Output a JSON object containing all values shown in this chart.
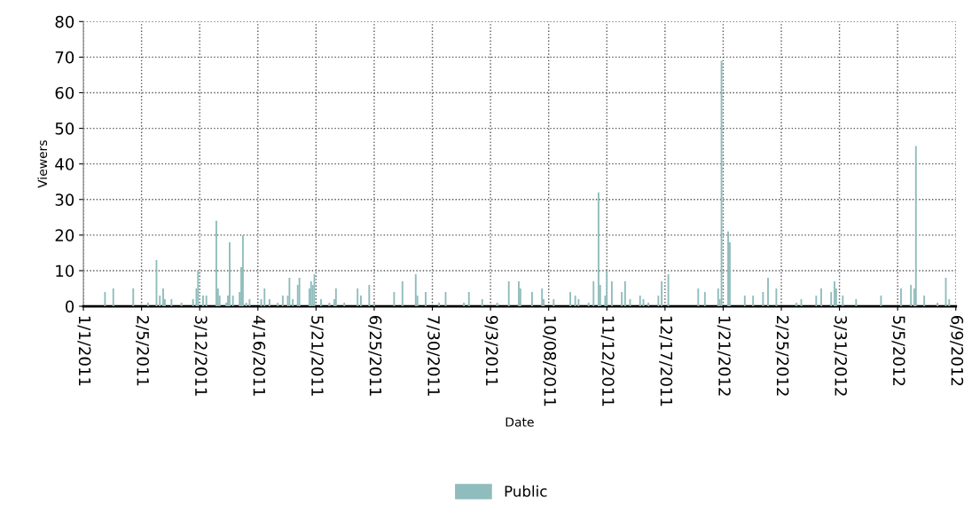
{
  "chart_data": {
    "type": "bar",
    "xlabel": "Date",
    "ylabel": "Viewers",
    "legend": "bottom",
    "grid": true,
    "line_style": "dotted",
    "xlim": [
      "2011-01-01",
      "2012-06-09"
    ],
    "xticks": [
      {
        "value": "2011-01-01",
        "label": "1/1/2011"
      },
      {
        "value": "2011-02-05",
        "label": "2/5/2011"
      },
      {
        "value": "2011-03-12",
        "label": "3/12/2011"
      },
      {
        "value": "2011-04-16",
        "label": "4/16/2011"
      },
      {
        "value": "2011-05-21",
        "label": "5/21/2011"
      },
      {
        "value": "2011-06-25",
        "label": "6/25/2011"
      },
      {
        "value": "2011-07-30",
        "label": "7/30/2011"
      },
      {
        "value": "2011-09-03",
        "label": "9/3/2011"
      },
      {
        "value": "2011-10-08",
        "label": "10/08/2011"
      },
      {
        "value": "2011-11-12",
        "label": "11/12/2011"
      },
      {
        "value": "2011-12-17",
        "label": "12/17/2011"
      },
      {
        "value": "2012-01-21",
        "label": "1/21/2012"
      },
      {
        "value": "2012-02-25",
        "label": "2/25/2012"
      },
      {
        "value": "2012-03-31",
        "label": "3/31/2012"
      },
      {
        "value": "2012-05-05",
        "label": "5/5/2012"
      },
      {
        "value": "2012-06-09",
        "label": "6/9/2012"
      }
    ],
    "ylim": [
      0,
      80
    ],
    "yticks": [
      0,
      10,
      20,
      30,
      40,
      50,
      60,
      70,
      80
    ],
    "x": [
      "2011-01-14",
      "2011-01-19",
      "2011-01-31",
      "2011-02-09",
      "2011-02-14",
      "2011-02-16",
      "2011-02-18",
      "2011-02-19",
      "2011-02-23",
      "2011-03-01",
      "2011-03-08",
      "2011-03-10",
      "2011-03-11",
      "2011-03-14",
      "2011-03-16",
      "2011-03-22",
      "2011-03-23",
      "2011-03-24",
      "2011-03-28",
      "2011-03-29",
      "2011-03-30",
      "2011-04-01",
      "2011-04-05",
      "2011-04-06",
      "2011-04-07",
      "2011-04-09",
      "2011-04-11",
      "2011-04-18",
      "2011-04-20",
      "2011-04-23",
      "2011-04-28",
      "2011-05-01",
      "2011-05-04",
      "2011-05-05",
      "2011-05-07",
      "2011-05-10",
      "2011-05-11",
      "2011-05-17",
      "2011-05-18",
      "2011-05-19",
      "2011-05-20",
      "2011-05-24",
      "2011-05-29",
      "2011-06-01",
      "2011-06-02",
      "2011-06-07",
      "2011-06-15",
      "2011-06-17",
      "2011-06-22",
      "2011-06-25",
      "2011-07-07",
      "2011-07-12",
      "2011-07-20",
      "2011-07-21",
      "2011-07-26",
      "2011-08-03",
      "2011-08-07",
      "2011-08-18",
      "2011-08-21",
      "2011-08-29",
      "2011-09-07",
      "2011-09-14",
      "2011-09-20",
      "2011-09-21",
      "2011-09-28",
      "2011-10-04",
      "2011-10-05",
      "2011-10-11",
      "2011-10-21",
      "2011-10-24",
      "2011-10-26",
      "2011-11-01",
      "2011-11-04",
      "2011-11-07",
      "2011-11-08",
      "2011-11-11",
      "2011-11-12",
      "2011-11-15",
      "2011-11-21",
      "2011-11-23",
      "2011-11-26",
      "2011-12-02",
      "2011-12-04",
      "2011-12-07",
      "2011-12-13",
      "2011-12-15",
      "2011-12-19",
      "2012-01-06",
      "2012-01-10",
      "2012-01-18",
      "2012-01-19",
      "2012-01-20",
      "2012-01-24",
      "2012-01-25",
      "2012-02-03",
      "2012-02-08",
      "2012-02-14",
      "2012-02-17",
      "2012-02-22",
      "2012-03-05",
      "2012-03-08",
      "2012-03-17",
      "2012-03-20",
      "2012-03-26",
      "2012-03-28",
      "2012-03-29",
      "2012-04-02",
      "2012-04-10",
      "2012-04-25",
      "2012-05-07",
      "2012-05-13",
      "2012-05-15",
      "2012-05-16",
      "2012-05-21",
      "2012-05-29",
      "2012-06-03",
      "2012-06-05"
    ],
    "series": [
      {
        "name": "Public",
        "color": "#8fbcbc",
        "values": [
          4,
          5,
          5,
          1,
          13,
          3,
          5,
          2,
          2,
          1,
          2,
          5,
          10,
          3,
          3,
          24,
          5,
          3,
          1,
          3,
          18,
          3,
          4,
          11,
          20,
          1,
          2,
          2,
          5,
          2,
          1,
          3,
          3,
          8,
          2,
          6,
          8,
          5,
          7,
          6,
          9,
          2,
          1,
          2,
          5,
          1,
          5,
          3,
          6,
          1,
          4,
          7,
          9,
          3,
          4,
          1,
          4,
          1,
          4,
          2,
          1,
          7,
          7,
          5,
          4,
          5,
          2,
          2,
          4,
          3,
          2,
          1,
          7,
          32,
          6,
          3,
          10,
          7,
          4,
          7,
          2,
          3,
          2,
          1,
          3,
          7,
          9,
          5,
          4,
          5,
          2,
          69,
          21,
          18,
          3,
          3,
          4,
          8,
          5,
          1,
          2,
          3,
          5,
          4,
          7,
          5,
          3,
          2,
          3,
          5,
          6,
          5,
          45,
          3,
          1,
          8,
          2
        ]
      }
    ]
  }
}
